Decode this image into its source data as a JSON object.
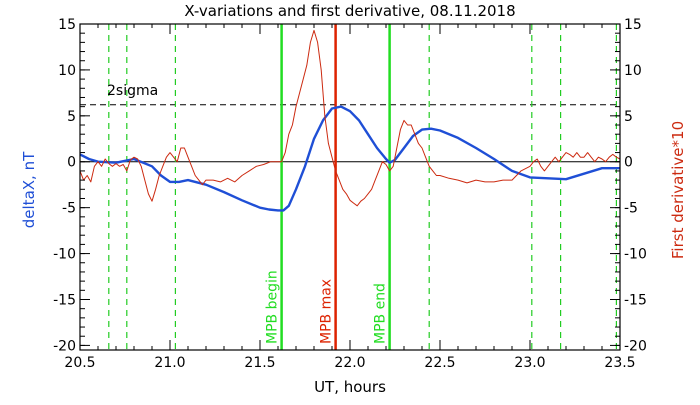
{
  "chart_data": {
    "type": "line",
    "title": "X-variations and first derivative, 08.11.2018",
    "xlabel": "UT, hours",
    "ylabel_left": "deltaX, nT",
    "ylabel_right": "First derivative*10",
    "xlim": [
      20.5,
      23.5
    ],
    "ylim": [
      -20.5,
      15
    ],
    "xticks": [
      "20.5",
      "21.0",
      "21.5",
      "22.0",
      "22.5",
      "23.0",
      "23.5"
    ],
    "yticks": [
      "15",
      "10",
      "5",
      "0",
      "-5",
      "-10",
      "-15",
      "-20"
    ],
    "threshold": {
      "label": "2sigma",
      "value": 6.2
    },
    "colors": {
      "deltaX": "#1f4fd6",
      "derivative": "#cc2a10",
      "mpb_boundary": "#22dd22",
      "mpb_max": "#dd2200",
      "dashed_markers": "#22cc22",
      "axes": "#000000"
    },
    "markers": [
      {
        "label": "MPB begin",
        "x": 21.62,
        "kind": "boundary"
      },
      {
        "label": "MPB max",
        "x": 21.92,
        "kind": "max"
      },
      {
        "label": "MPB end",
        "x": 22.22,
        "kind": "boundary"
      }
    ],
    "dashed_lines_x": [
      20.66,
      20.76,
      21.03,
      22.44,
      23.01,
      23.17,
      23.48
    ],
    "series": [
      {
        "name": "deltaX",
        "axis": "left",
        "x": [
          20.5,
          20.55,
          20.6,
          20.7,
          20.8,
          20.9,
          20.95,
          21.0,
          21.05,
          21.1,
          21.2,
          21.3,
          21.4,
          21.5,
          21.55,
          21.6,
          21.63,
          21.66,
          21.7,
          21.75,
          21.8,
          21.85,
          21.9,
          21.95,
          22.0,
          22.05,
          22.1,
          22.15,
          22.2,
          22.22,
          22.25,
          22.3,
          22.35,
          22.4,
          22.45,
          22.5,
          22.6,
          22.7,
          22.8,
          22.9,
          23.0,
          23.1,
          23.2,
          23.3,
          23.4,
          23.5
        ],
        "y": [
          0.8,
          0.3,
          0.0,
          -0.1,
          0.3,
          -0.5,
          -1.5,
          -2.2,
          -2.2,
          -2.0,
          -2.5,
          -3.3,
          -4.2,
          -5.0,
          -5.2,
          -5.3,
          -5.3,
          -4.8,
          -3.0,
          -0.5,
          2.5,
          4.5,
          5.8,
          6.0,
          5.5,
          4.5,
          3.0,
          1.5,
          0.3,
          -0.1,
          0.2,
          1.5,
          2.8,
          3.5,
          3.6,
          3.4,
          2.6,
          1.5,
          0.3,
          -1.0,
          -1.7,
          -1.8,
          -1.9,
          -1.3,
          -0.7,
          -0.7
        ]
      },
      {
        "name": "derivative",
        "axis": "left",
        "x": [
          20.5,
          20.52,
          20.54,
          20.56,
          20.58,
          20.6,
          20.62,
          20.64,
          20.66,
          20.68,
          20.7,
          20.72,
          20.74,
          20.76,
          20.78,
          20.8,
          20.82,
          20.84,
          20.86,
          20.88,
          20.9,
          20.92,
          20.94,
          20.96,
          20.98,
          21.0,
          21.02,
          21.04,
          21.06,
          21.08,
          21.1,
          21.12,
          21.14,
          21.16,
          21.18,
          21.2,
          21.24,
          21.28,
          21.32,
          21.36,
          21.4,
          21.44,
          21.48,
          21.52,
          21.56,
          21.6,
          21.62,
          21.64,
          21.66,
          21.68,
          21.7,
          21.72,
          21.74,
          21.76,
          21.78,
          21.8,
          21.82,
          21.84,
          21.86,
          21.88,
          21.9,
          21.92,
          21.94,
          21.96,
          21.98,
          22.0,
          22.02,
          22.04,
          22.06,
          22.08,
          22.1,
          22.12,
          22.14,
          22.16,
          22.18,
          22.2,
          22.22,
          22.24,
          22.26,
          22.28,
          22.3,
          22.32,
          22.34,
          22.36,
          22.38,
          22.4,
          22.42,
          22.44,
          22.46,
          22.48,
          22.5,
          22.55,
          22.6,
          22.65,
          22.7,
          22.75,
          22.8,
          22.85,
          22.9,
          22.95,
          23.0,
          23.02,
          23.04,
          23.06,
          23.08,
          23.1,
          23.12,
          23.14,
          23.16,
          23.18,
          23.2,
          23.22,
          23.24,
          23.26,
          23.28,
          23.3,
          23.32,
          23.34,
          23.36,
          23.38,
          23.4,
          23.42,
          23.44,
          23.46,
          23.48,
          23.5
        ],
        "y": [
          -1.0,
          -2.0,
          -1.5,
          -2.2,
          -0.5,
          0.0,
          -0.5,
          0.3,
          -0.2,
          -0.5,
          -0.2,
          -0.5,
          -0.3,
          -1.0,
          0.2,
          0.5,
          0.3,
          -0.5,
          -2.0,
          -3.5,
          -4.3,
          -3.0,
          -1.5,
          -0.5,
          0.5,
          1.0,
          0.5,
          0.0,
          1.5,
          1.5,
          0.5,
          -0.5,
          -1.5,
          -2.0,
          -2.5,
          -2.0,
          -2.0,
          -2.2,
          -1.8,
          -2.2,
          -1.5,
          -1.0,
          -0.5,
          -0.3,
          0.0,
          0.0,
          0.0,
          1.0,
          3.0,
          4.0,
          6.0,
          7.5,
          9.0,
          10.5,
          13.0,
          14.3,
          13.0,
          10.0,
          5.0,
          2.0,
          0.5,
          -1.0,
          -2.0,
          -3.0,
          -3.5,
          -4.2,
          -4.5,
          -4.8,
          -4.3,
          -4.0,
          -3.5,
          -3.0,
          -2.0,
          -1.0,
          0.0,
          -0.3,
          -1.0,
          -0.5,
          1.5,
          3.5,
          4.5,
          4.0,
          4.0,
          3.0,
          2.0,
          1.5,
          0.5,
          -0.5,
          -1.0,
          -1.5,
          -1.5,
          -1.8,
          -2.0,
          -2.3,
          -2.0,
          -2.2,
          -2.2,
          -2.0,
          -2.0,
          -1.0,
          -0.5,
          0.0,
          0.3,
          -0.5,
          -1.0,
          -0.5,
          0.0,
          0.5,
          0.0,
          0.5,
          1.0,
          0.8,
          0.5,
          1.0,
          0.5,
          0.5,
          1.0,
          0.5,
          0.0,
          0.5,
          0.3,
          0.0,
          0.5,
          0.8,
          0.5,
          0.3
        ]
      }
    ]
  }
}
